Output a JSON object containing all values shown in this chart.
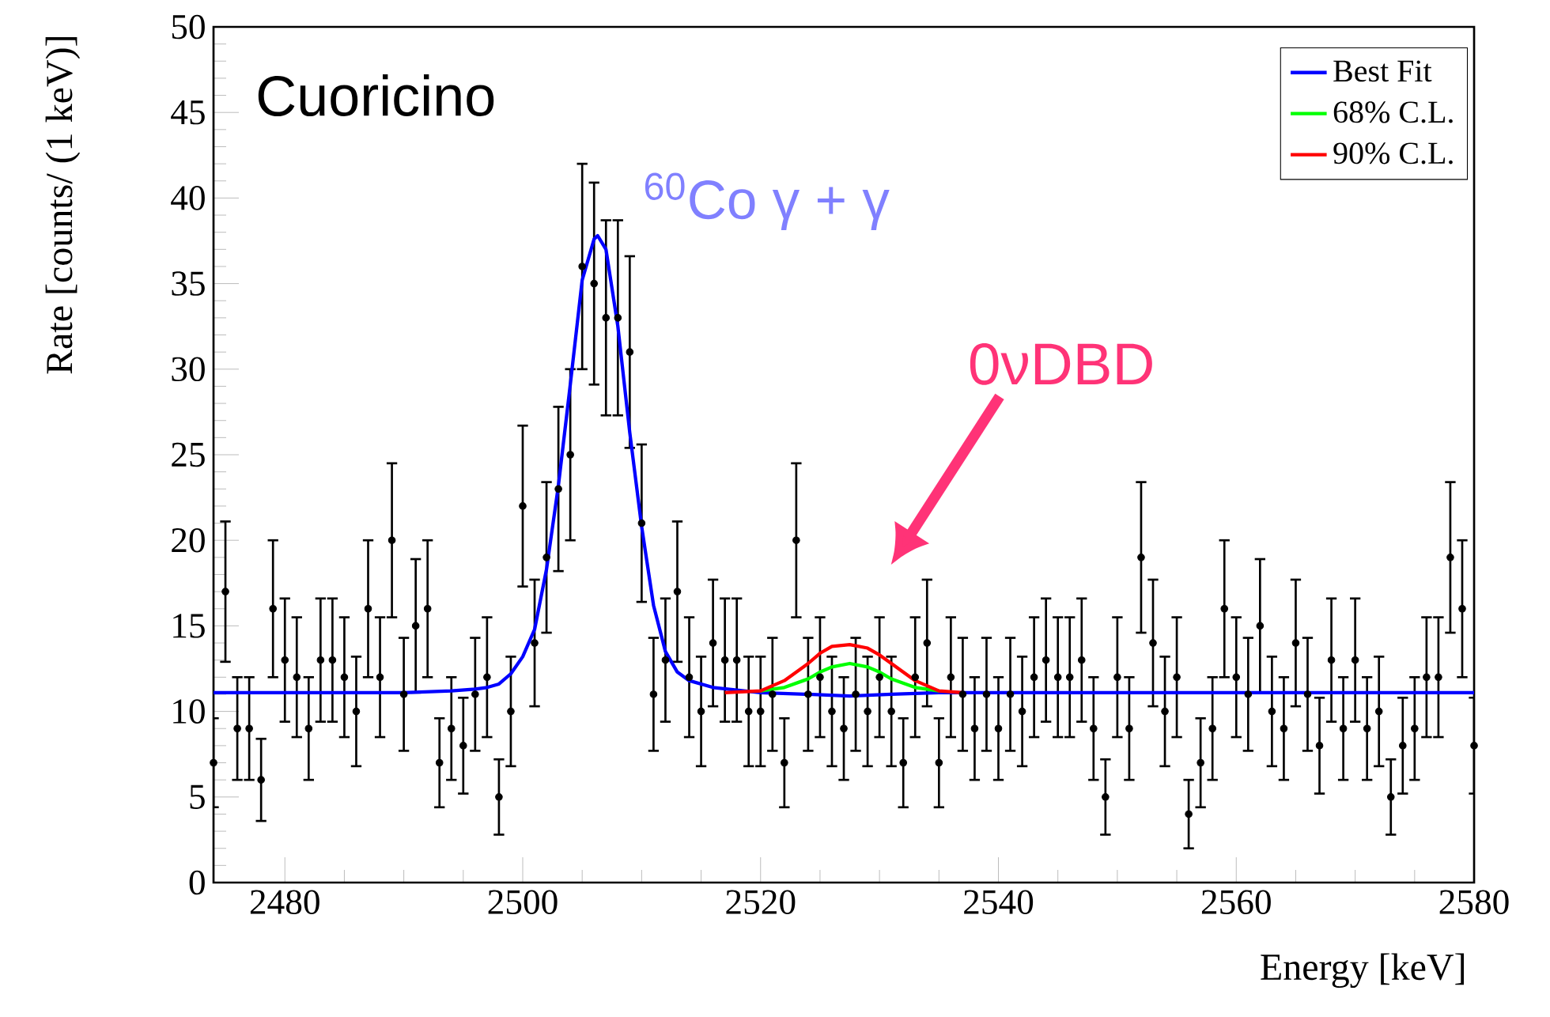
{
  "chart_data": {
    "type": "scatter",
    "xlabel": "Energy [keV]",
    "ylabel": "Rate [counts/ (1 keV)]",
    "xlim": [
      2474,
      2580
    ],
    "ylim": [
      0,
      50
    ],
    "xticks": [
      2480,
      2500,
      2520,
      2540,
      2560,
      2580
    ],
    "yticks": [
      0,
      5,
      10,
      15,
      20,
      25,
      30,
      35,
      40,
      45,
      50
    ],
    "legend": "top right",
    "annotations": [
      "Cuoricino",
      "$^{60}$Co γ + γ",
      "0νDBD"
    ],
    "series": [
      {
        "color": "#000000",
        "marker": "circle",
        "x": [
          2474,
          2475,
          2476,
          2477,
          2478,
          2479,
          2480,
          2481,
          2482,
          2483,
          2484,
          2485,
          2486,
          2487,
          2488,
          2489,
          2490,
          2491,
          2492,
          2493,
          2494,
          2495,
          2496,
          2497,
          2498,
          2499,
          2500,
          2501,
          2502,
          2503,
          2504,
          2505,
          2506,
          2507,
          2508,
          2509,
          2510,
          2511,
          2512,
          2513,
          2514,
          2515,
          2516,
          2517,
          2518,
          2519,
          2520,
          2521,
          2522,
          2523,
          2524,
          2525,
          2526,
          2527,
          2528,
          2529,
          2530,
          2531,
          2532,
          2533,
          2534,
          2535,
          2536,
          2537,
          2538,
          2539,
          2540,
          2541,
          2542,
          2543,
          2544,
          2545,
          2546,
          2547,
          2548,
          2549,
          2550,
          2551,
          2552,
          2553,
          2554,
          2555,
          2556,
          2557,
          2558,
          2559,
          2560,
          2561,
          2562,
          2563,
          2564,
          2565,
          2566,
          2567,
          2568,
          2569,
          2570,
          2571,
          2572,
          2573,
          2574,
          2575,
          2576,
          2577,
          2578,
          2579,
          2580
        ],
        "values": [
          7,
          17,
          9,
          9,
          6,
          16,
          13,
          12,
          9,
          13,
          13,
          12,
          10,
          16,
          12,
          20,
          11,
          15,
          16,
          7,
          9,
          8,
          11,
          12,
          5,
          10,
          22,
          14,
          19,
          23,
          25,
          36,
          35,
          33,
          33,
          31,
          21,
          11,
          13,
          17,
          12,
          10,
          14,
          13,
          13,
          10,
          10,
          11,
          7,
          20,
          11,
          12,
          10,
          9,
          11,
          10,
          12,
          10,
          7,
          12,
          14,
          7,
          12,
          11,
          9,
          11,
          9,
          11,
          10,
          12,
          13,
          12,
          12,
          13,
          9,
          5,
          12,
          9,
          19,
          14,
          10,
          12,
          4,
          7,
          9,
          16,
          12,
          11,
          15,
          10,
          9,
          14,
          11,
          8,
          13,
          9,
          13,
          9,
          10,
          5,
          8,
          9,
          12,
          12,
          19,
          16,
          8
        ],
        "errors": [
          2.6,
          4.1,
          3,
          3,
          2.4,
          4,
          3.6,
          3.5,
          3,
          3.6,
          3.6,
          3.5,
          3.2,
          4,
          3.5,
          4.5,
          3.3,
          3.9,
          4,
          2.6,
          3,
          2.8,
          3.3,
          3.5,
          2.2,
          3.2,
          4.7,
          3.7,
          4.4,
          4.8,
          5,
          6,
          5.9,
          5.7,
          5.7,
          5.6,
          4.6,
          3.3,
          3.6,
          4.1,
          3.5,
          3.2,
          3.7,
          3.6,
          3.6,
          3.2,
          3.2,
          3.3,
          2.6,
          4.5,
          3.3,
          3.5,
          3.2,
          3,
          3.3,
          3.2,
          3.5,
          3.2,
          2.6,
          3.5,
          3.7,
          2.6,
          3.5,
          3.3,
          3,
          3.3,
          3,
          3.3,
          3.2,
          3.5,
          3.6,
          3.5,
          3.5,
          3.6,
          3,
          2.2,
          3.5,
          3,
          4.4,
          3.7,
          3.2,
          3.5,
          2,
          2.6,
          3,
          4,
          3.5,
          3.3,
          3.9,
          3.2,
          3,
          3.7,
          3.3,
          2.8,
          3.6,
          3,
          3.6,
          3,
          3.2,
          2.2,
          2.8,
          3,
          3.5,
          3.5,
          4.4,
          4,
          2.8
        ]
      },
      {
        "name": "Best Fit",
        "type": "line",
        "marker": "none",
        "color": "#0000ff",
        "x": [
          2474,
          2490,
          2494,
          2496,
          2497,
          2498,
          2499,
          2500,
          2501,
          2502,
          2503,
          2504,
          2505,
          2506,
          2506.3,
          2507,
          2508,
          2509,
          2510,
          2511,
          2512,
          2513,
          2514,
          2516,
          2520,
          2524,
          2527.5,
          2531,
          2535,
          2580
        ],
        "values": [
          11.1,
          11.1,
          11.2,
          11.3,
          11.4,
          11.6,
          12.2,
          13.2,
          14.8,
          18.3,
          23.2,
          29.1,
          35.2,
          37.6,
          37.8,
          37.0,
          32.5,
          26.3,
          20.8,
          16.2,
          13.5,
          12.3,
          11.8,
          11.4,
          11.1,
          11.0,
          10.9,
          11.0,
          11.1,
          11.1
        ]
      },
      {
        "name": "68% C.L.",
        "type": "line",
        "marker": "none",
        "color": "#00ff00",
        "x": [
          2520,
          2522,
          2524,
          2525,
          2526,
          2527.5,
          2529,
          2530,
          2531,
          2533,
          2535
        ],
        "values": [
          11.2,
          11.4,
          11.9,
          12.3,
          12.6,
          12.8,
          12.6,
          12.3,
          11.9,
          11.4,
          11.2
        ]
      },
      {
        "name": "90% C.L.",
        "type": "line",
        "marker": "none",
        "color": "#ff0000",
        "x": [
          2517,
          2520,
          2522,
          2524,
          2525,
          2526,
          2527.5,
          2529,
          2530,
          2531,
          2533,
          2535,
          2537
        ],
        "values": [
          11.1,
          11.2,
          11.8,
          12.8,
          13.4,
          13.8,
          13.9,
          13.7,
          13.3,
          12.8,
          11.8,
          11.2,
          11.1
        ]
      }
    ]
  }
}
